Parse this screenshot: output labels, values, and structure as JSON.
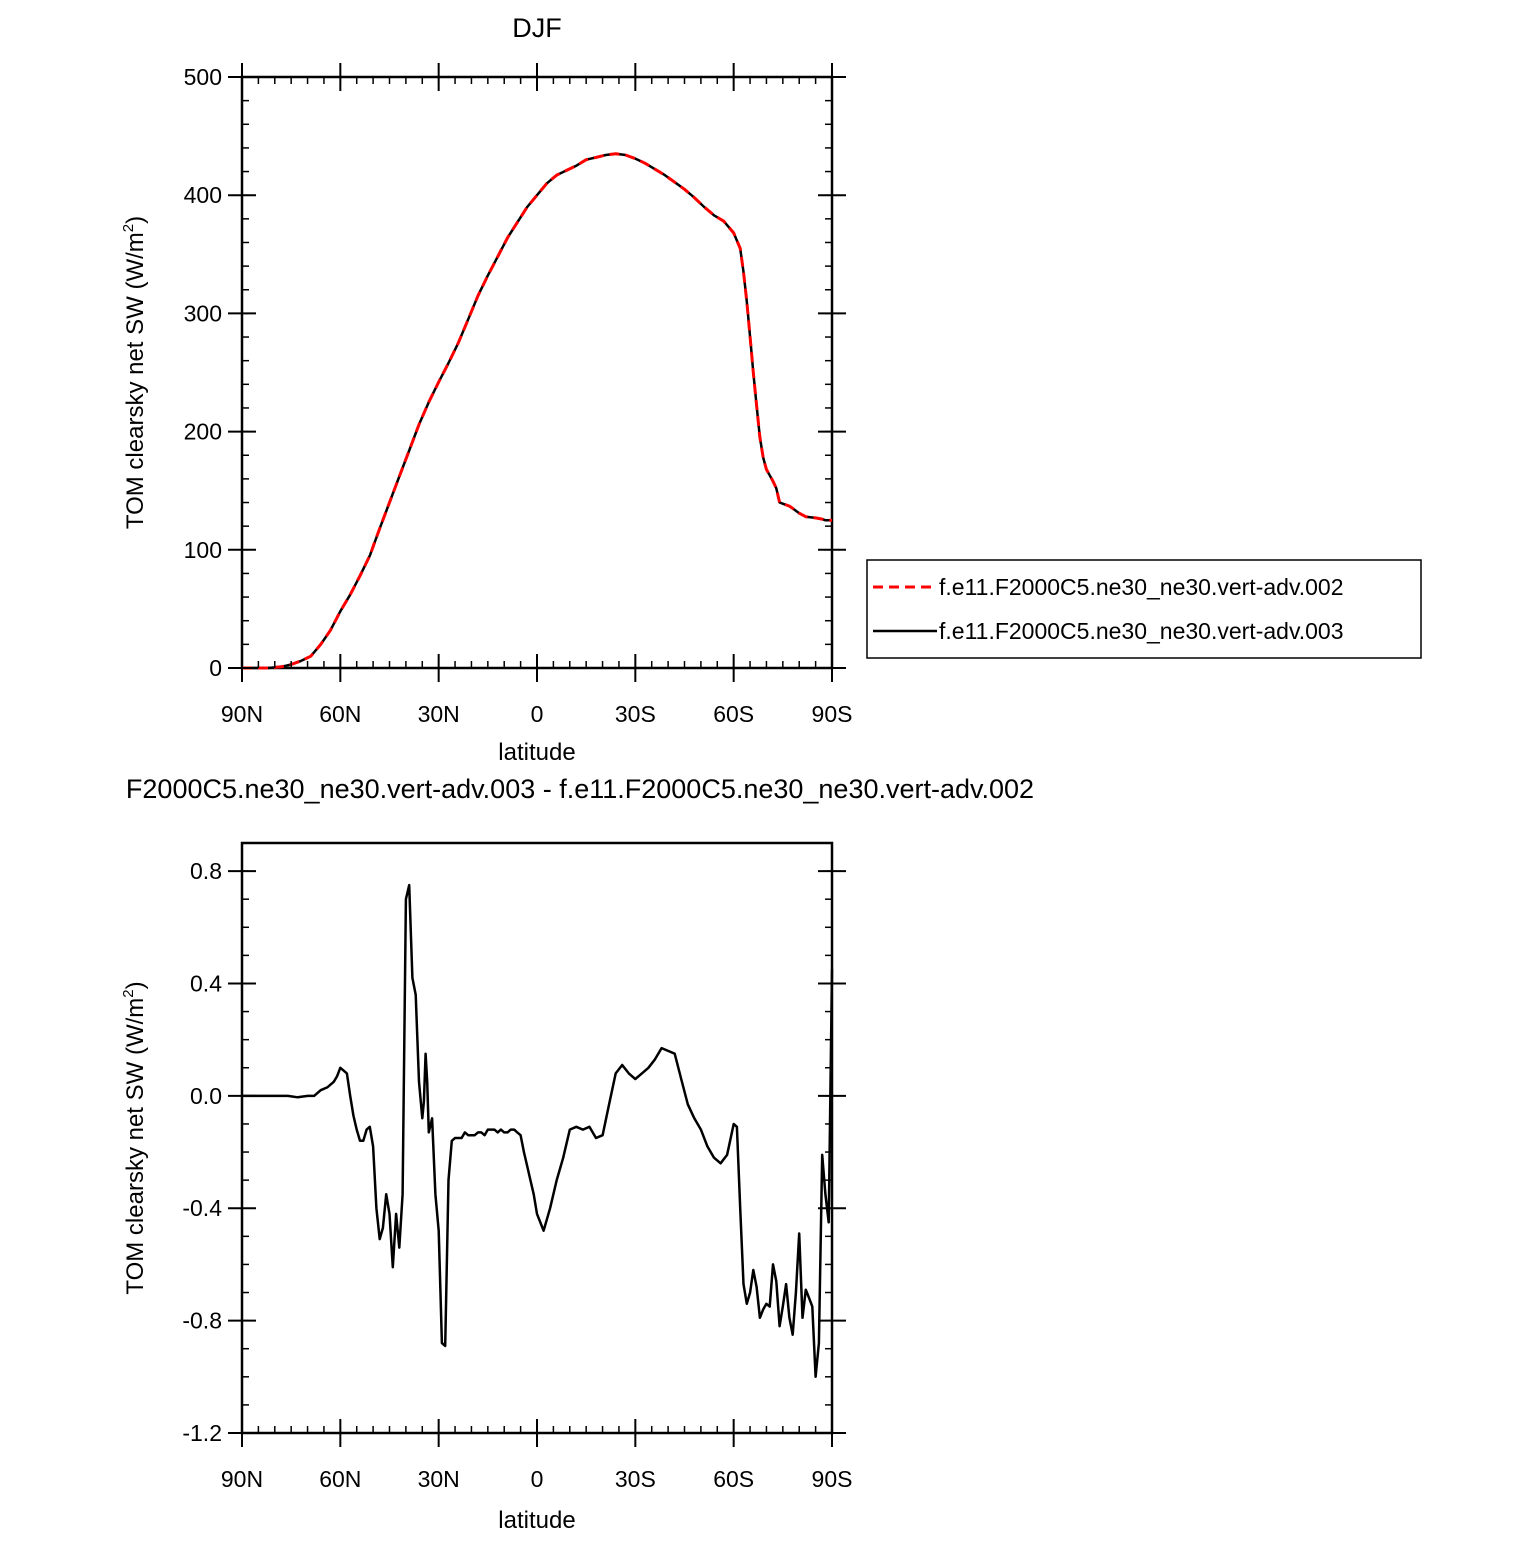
{
  "chart_data": [
    {
      "type": "line",
      "title": "DJF",
      "xlabel": "latitude",
      "ylabel": "TOM clearsky net SW (W/m",
      "ylabel_sup": "2",
      "ylabel_close": ")",
      "xlim": [
        -90,
        90
      ],
      "ylim": [
        0,
        500
      ],
      "yticks": [
        0,
        100,
        200,
        300,
        400,
        500
      ],
      "ytick_labels": [
        "0",
        "100",
        "200",
        "300",
        "400",
        "500"
      ],
      "xticks": [
        -90,
        -60,
        -30,
        0,
        30,
        60,
        90
      ],
      "xtick_labels": [
        "90N",
        "60N",
        "30N",
        "0",
        "30S",
        "60S",
        "90S"
      ],
      "grid": false,
      "legend_position": "right",
      "series": [
        {
          "name": "f.e11.F2000C5.ne30_ne30.vert-adv.002",
          "color": "#ff0000",
          "dash": "dashed",
          "x": [
            -90,
            -82,
            -78,
            -75,
            -72,
            -69,
            -66,
            -63,
            -60,
            -57,
            -54,
            -51,
            -48,
            -45,
            -42,
            -39,
            -36,
            -33,
            -30,
            -27,
            -24,
            -21,
            -18,
            -15,
            -12,
            -9,
            -6,
            -3,
            0,
            3,
            6,
            9,
            12,
            15,
            18,
            21,
            24,
            27,
            30,
            33,
            36,
            39,
            42,
            45,
            48,
            51,
            54,
            57,
            60,
            62,
            63,
            64,
            65,
            66,
            67,
            68,
            69,
            70,
            71,
            72,
            73,
            74,
            75,
            76,
            77,
            78,
            79,
            80,
            82,
            85,
            87,
            88,
            90
          ],
          "y": [
            0,
            0,
            1,
            3,
            6,
            10,
            20,
            32,
            48,
            62,
            78,
            95,
            118,
            140,
            162,
            184,
            206,
            225,
            242,
            258,
            275,
            295,
            315,
            332,
            348,
            364,
            377,
            390,
            400,
            410,
            417,
            421,
            425,
            430,
            432,
            434,
            435,
            434,
            431,
            427,
            422,
            417,
            411,
            405,
            398,
            390,
            383,
            378,
            368,
            355,
            335,
            310,
            280,
            250,
            222,
            195,
            178,
            168,
            163,
            158,
            152,
            140,
            139,
            138,
            137,
            135,
            133,
            131,
            128,
            127,
            126,
            125,
            125
          ]
        },
        {
          "name": "f.e11.F2000C5.ne30_ne30.vert-adv.003",
          "color": "#000000",
          "dash": "solid",
          "x": [
            -90,
            -82,
            -78,
            -75,
            -72,
            -69,
            -66,
            -63,
            -60,
            -57,
            -54,
            -51,
            -48,
            -45,
            -42,
            -39,
            -36,
            -33,
            -30,
            -27,
            -24,
            -21,
            -18,
            -15,
            -12,
            -9,
            -6,
            -3,
            0,
            3,
            6,
            9,
            12,
            15,
            18,
            21,
            24,
            27,
            30,
            33,
            36,
            39,
            42,
            45,
            48,
            51,
            54,
            57,
            60,
            62,
            63,
            64,
            65,
            66,
            67,
            68,
            69,
            70,
            71,
            72,
            73,
            74,
            75,
            76,
            77,
            78,
            79,
            80,
            82,
            85,
            87,
            88,
            90
          ],
          "y": [
            0,
            0,
            1,
            3,
            6,
            10,
            20,
            32,
            48,
            62,
            78,
            95,
            118,
            140,
            162,
            184,
            206,
            225,
            242,
            258,
            275,
            295,
            315,
            332,
            348,
            364,
            377,
            390,
            400,
            410,
            417,
            421,
            425,
            430,
            432,
            434,
            435,
            434,
            431,
            427,
            422,
            417,
            411,
            405,
            398,
            390,
            383,
            378,
            368,
            355,
            335,
            310,
            280,
            250,
            222,
            195,
            178,
            168,
            163,
            158,
            152,
            140,
            139,
            138,
            137,
            135,
            133,
            131,
            128,
            127,
            126,
            125,
            125
          ]
        }
      ]
    },
    {
      "type": "line",
      "title": "F2000C5.ne30_ne30.vert-adv.003 - f.e11.F2000C5.ne30_ne30.vert-adv.002",
      "xlabel": "latitude",
      "ylabel": "TOM clearsky net SW (W/m",
      "ylabel_sup": "2",
      "ylabel_close": ")",
      "xlim": [
        -90,
        90
      ],
      "ylim": [
        -1.2,
        0.9
      ],
      "yticks": [
        -1.2,
        -0.8,
        -0.4,
        0.0,
        0.4,
        0.8
      ],
      "ytick_labels": [
        "-1.2",
        "-0.8",
        "-0.4",
        "0.0",
        "0.4",
        "0.8"
      ],
      "xticks": [
        -90,
        -60,
        -30,
        0,
        30,
        60,
        90
      ],
      "xtick_labels": [
        "90N",
        "60N",
        "30N",
        "0",
        "30S",
        "60S",
        "90S"
      ],
      "grid": false,
      "series": [
        {
          "color": "#000000",
          "dash": "solid",
          "x": [
            -90,
            -80,
            -76,
            -73,
            -70,
            -68,
            -66,
            -64,
            -62,
            -61,
            -60,
            -59,
            -58,
            -57,
            -56,
            -55,
            -54,
            -53,
            -52,
            -51,
            -50,
            -49,
            -48,
            -47,
            -46,
            -45,
            -44,
            -43,
            -42,
            -41,
            -40,
            -39,
            -38,
            -37,
            -36,
            -35,
            -34.5,
            -34,
            -33.5,
            -33,
            -32,
            -31,
            -30,
            -29,
            -28,
            -27,
            -26,
            -25,
            -24,
            -23,
            -22,
            -21,
            -20,
            -19,
            -18,
            -17,
            -16,
            -15,
            -14,
            -13,
            -12,
            -11,
            -10,
            -9,
            -8,
            -7,
            -6,
            -5,
            -4,
            -3,
            -2,
            -1,
            0,
            2,
            4,
            6,
            8,
            10,
            12,
            14,
            16,
            18,
            20,
            22,
            24,
            26,
            28,
            30,
            32,
            34,
            36,
            38,
            40,
            42,
            44,
            46,
            48,
            50,
            52,
            54,
            56,
            58,
            60,
            61,
            62,
            63,
            64,
            65,
            66,
            67,
            68,
            69,
            70,
            71,
            72,
            73,
            74,
            75,
            76,
            77,
            78,
            79,
            80,
            81,
            82,
            83,
            84,
            85,
            86,
            87,
            88,
            89,
            90
          ],
          "y": [
            0,
            0,
            0,
            -0.005,
            0,
            0,
            0.02,
            0.03,
            0.05,
            0.07,
            0.1,
            0.09,
            0.08,
            0,
            -0.07,
            -0.12,
            -0.16,
            -0.16,
            -0.12,
            -0.11,
            -0.18,
            -0.4,
            -0.51,
            -0.47,
            -0.35,
            -0.42,
            -0.61,
            -0.42,
            -0.54,
            -0.35,
            0.7,
            0.75,
            0.42,
            0.36,
            0.05,
            -0.08,
            -0.02,
            0.15,
            0.05,
            -0.13,
            -0.08,
            -0.35,
            -0.48,
            -0.88,
            -0.89,
            -0.3,
            -0.16,
            -0.15,
            -0.15,
            -0.15,
            -0.13,
            -0.14,
            -0.14,
            -0.14,
            -0.13,
            -0.13,
            -0.14,
            -0.12,
            -0.12,
            -0.12,
            -0.13,
            -0.12,
            -0.13,
            -0.13,
            -0.12,
            -0.12,
            -0.13,
            -0.14,
            -0.2,
            -0.25,
            -0.3,
            -0.35,
            -0.42,
            -0.48,
            -0.4,
            -0.3,
            -0.22,
            -0.12,
            -0.11,
            -0.12,
            -0.11,
            -0.15,
            -0.14,
            -0.03,
            0.08,
            0.11,
            0.08,
            0.06,
            0.08,
            0.1,
            0.13,
            0.17,
            0.16,
            0.15,
            0.06,
            -0.03,
            -0.08,
            -0.12,
            -0.18,
            -0.22,
            -0.24,
            -0.21,
            -0.1,
            -0.11,
            -0.4,
            -0.67,
            -0.74,
            -0.7,
            -0.62,
            -0.68,
            -0.79,
            -0.76,
            -0.74,
            -0.75,
            -0.6,
            -0.66,
            -0.82,
            -0.75,
            -0.67,
            -0.79,
            -0.85,
            -0.7,
            -0.49,
            -0.79,
            -0.69,
            -0.72,
            -0.75,
            -1.0,
            -0.88,
            -0.21,
            -0.35,
            -0.45,
            0.45
          ]
        }
      ]
    }
  ]
}
